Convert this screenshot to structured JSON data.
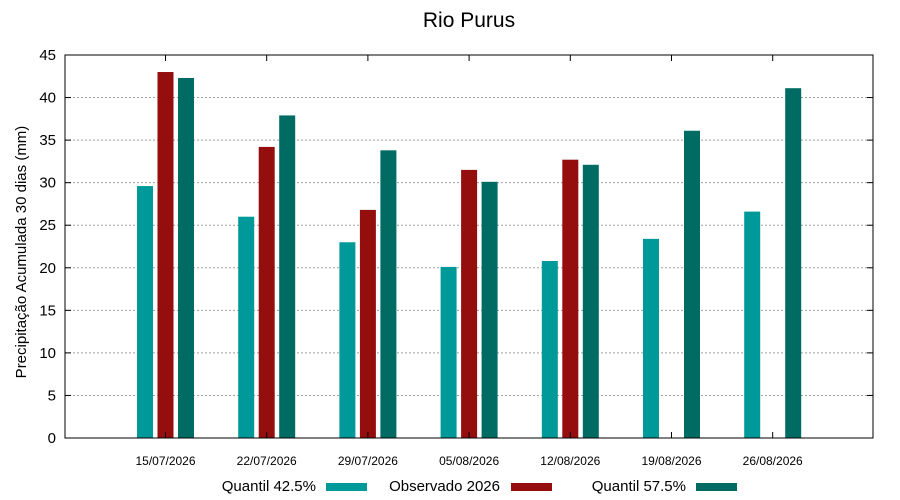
{
  "chart_data": {
    "type": "bar",
    "title": "Rio Purus",
    "xlabel": "",
    "ylabel": "Precipitação Acumulada 30 dias (mm)",
    "ylim": [
      0,
      45
    ],
    "yticks": [
      0,
      5,
      10,
      15,
      20,
      25,
      30,
      35,
      40,
      45
    ],
    "grid": true,
    "legend_position": "bottom",
    "categories": [
      "15/07/2026",
      "22/07/2026",
      "29/07/2026",
      "05/08/2026",
      "12/08/2026",
      "19/08/2026",
      "26/08/2026"
    ],
    "series": [
      {
        "name": "Quantil 42.5%",
        "color": "#009999",
        "values": [
          29.6,
          26.0,
          23.0,
          20.1,
          20.8,
          23.4,
          26.6
        ]
      },
      {
        "name": "Observado 2026",
        "color": "#940e0e",
        "values": [
          43.0,
          34.2,
          26.8,
          31.5,
          32.7,
          null,
          null
        ]
      },
      {
        "name": "Quantil 57.5%",
        "color": "#006b62",
        "values": [
          42.3,
          37.9,
          33.8,
          30.1,
          32.1,
          36.1,
          41.1
        ]
      }
    ]
  }
}
